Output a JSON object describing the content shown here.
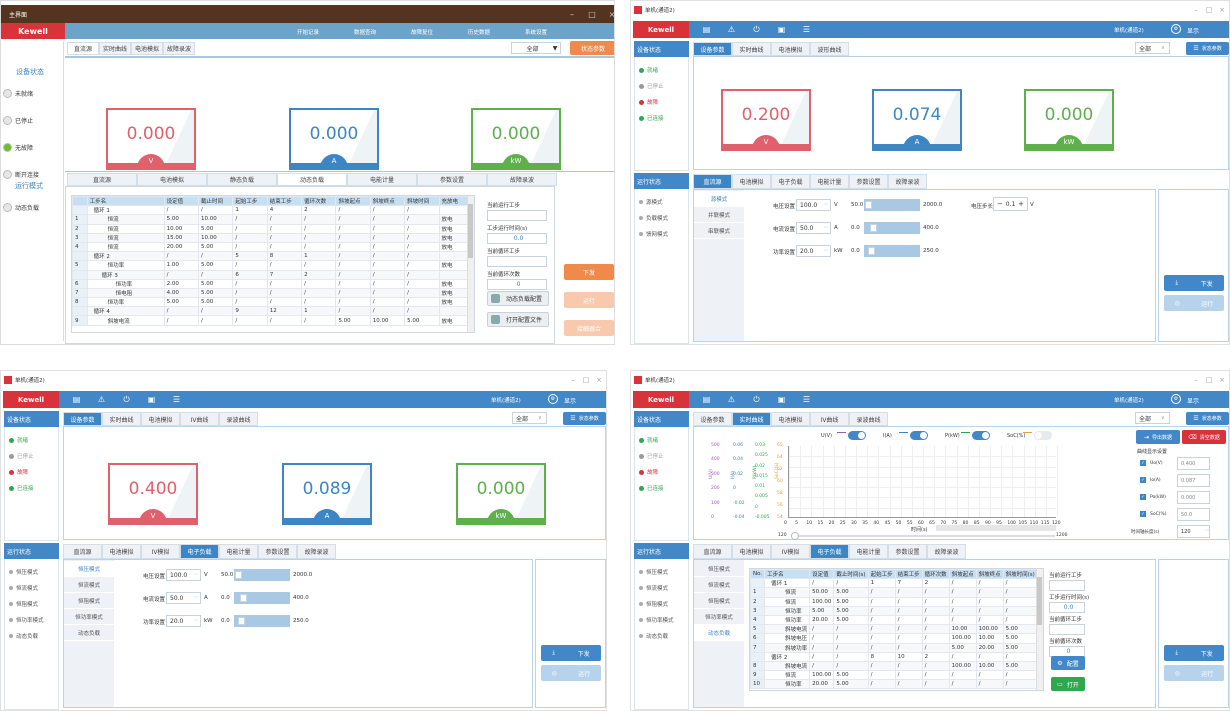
{
  "colors": {
    "v": "#e0606c",
    "a": "#3d86c6",
    "kw": "#5db04a",
    "brand": "#d8323a",
    "header": "#4288c8",
    "old_header": "#6ca3c8",
    "old_title": "#55341f",
    "orange": "#f08a4b"
  },
  "p1": {
    "title": "主界面",
    "brand": "Kewell",
    "nav": [
      "开始记录",
      "数据查询",
      "故障复位",
      "历史数据",
      "系统设置"
    ],
    "tabs": [
      "直流源",
      "实时曲线",
      "电池模拟",
      "故障录波"
    ],
    "select": "全部",
    "status_button": "状态参数",
    "device_heading": "设备状态",
    "status": [
      {
        "label": "未就绪",
        "on": false
      },
      {
        "label": "已停止",
        "on": false
      },
      {
        "label": "无故障",
        "on": true
      },
      {
        "label": "断开连接",
        "on": false
      }
    ],
    "run_heading": "运行模式",
    "run_items": [
      "动态负载"
    ],
    "meters": [
      {
        "value": "0.000",
        "unit": "V"
      },
      {
        "value": "0.000",
        "unit": "A"
      },
      {
        "value": "0.000",
        "unit": "kW"
      }
    ],
    "bottom_tabs": [
      "直流源",
      "电池模拟",
      "静态负载",
      "动态负载",
      "电能计量",
      "参数设置",
      "故障录波"
    ],
    "bottom_active": 3,
    "columns": [
      "",
      "工步名",
      "设定值",
      "截止时间",
      "起始工步",
      "结束工步",
      "循环次数",
      "斜坡起点",
      "斜坡终点",
      "斜坡时间",
      "充放电"
    ],
    "rows": [
      {
        "lv": 0,
        "c": [
          "",
          "循环 1",
          "/",
          "/",
          "1",
          "4",
          "2",
          "/",
          "/",
          "/",
          ""
        ]
      },
      {
        "lv": 1,
        "c": [
          "1",
          "恒流",
          "5.00",
          "10.00",
          "/",
          "/",
          "/",
          "/",
          "/",
          "/",
          "放电"
        ]
      },
      {
        "lv": 1,
        "c": [
          "2",
          "恒流",
          "10.00",
          "5.00",
          "/",
          "/",
          "/",
          "/",
          "/",
          "/",
          "放电"
        ]
      },
      {
        "lv": 1,
        "c": [
          "3",
          "恒流",
          "15.00",
          "10.00",
          "/",
          "/",
          "/",
          "/",
          "/",
          "/",
          "放电"
        ]
      },
      {
        "lv": 1,
        "c": [
          "4",
          "恒流",
          "20.00",
          "5.00",
          "/",
          "/",
          "/",
          "/",
          "/",
          "/",
          "放电"
        ]
      },
      {
        "lv": 0,
        "c": [
          "",
          "循环 2",
          "/",
          "/",
          "5",
          "8",
          "1",
          "/",
          "/",
          "/",
          ""
        ]
      },
      {
        "lv": 1,
        "c": [
          "5",
          "恒功率",
          "1.00",
          "5.00",
          "/",
          "/",
          "/",
          "/",
          "/",
          "/",
          "放电"
        ]
      },
      {
        "lv": 1,
        "c": [
          "",
          "循环 3",
          "/",
          "/",
          "6",
          "7",
          "2",
          "/",
          "/",
          "/",
          ""
        ]
      },
      {
        "lv": 2,
        "c": [
          "6",
          "恒功率",
          "2.00",
          "5.00",
          "/",
          "/",
          "/",
          "/",
          "/",
          "/",
          "放电"
        ]
      },
      {
        "lv": 2,
        "c": [
          "7",
          "恒电阻",
          "4.00",
          "5.00",
          "/",
          "/",
          "/",
          "/",
          "/",
          "/",
          "放电"
        ]
      },
      {
        "lv": 1,
        "c": [
          "8",
          "恒功率",
          "5.00",
          "5.00",
          "/",
          "/",
          "/",
          "/",
          "/",
          "/",
          "放电"
        ]
      },
      {
        "lv": 0,
        "c": [
          "",
          "循环 4",
          "/",
          "/",
          "9",
          "12",
          "1",
          "/",
          "/",
          "/",
          ""
        ]
      },
      {
        "lv": 1,
        "c": [
          "9",
          "斜坡电流",
          "/",
          "/",
          "/",
          "/",
          "/",
          "5.00",
          "10.00",
          "5.00",
          "放电"
        ]
      }
    ],
    "side_fields": [
      {
        "label": "当前运行工步",
        "value": ""
      },
      {
        "label": "工步运行时间(s)",
        "value": "0.0"
      },
      {
        "label": "当前循环工步",
        "value": ""
      },
      {
        "label": "当前循环次数",
        "value": "0"
      }
    ],
    "config_button": "动态负载配置",
    "open_button": "打开配置文件",
    "actions": [
      "下发",
      "运行",
      "接触器合"
    ]
  },
  "p2": {
    "title": "单机(通道2)",
    "brand": "Kewell",
    "channel": "单机(通道2)",
    "display": "显示",
    "toolbar_icons": [
      "document-icon",
      "warning-icon",
      "power-icon",
      "save-icon",
      "list-icon"
    ],
    "device_heading": "设备状态",
    "status": [
      {
        "label": "就绪",
        "color": "#2ea84e"
      },
      {
        "label": "已停止",
        "color": "#9a9a9a"
      },
      {
        "label": "故障",
        "color": "#d8323a"
      },
      {
        "label": "已连接",
        "color": "#2ea84e"
      }
    ],
    "tabs": [
      "设备参数",
      "实时曲线",
      "电池模拟",
      "波形曲线"
    ],
    "tab_active": 0,
    "select": "全部",
    "status_button": "状态参数",
    "meters": [
      {
        "value": "0.200",
        "unit": "V"
      },
      {
        "value": "0.074",
        "unit": "A"
      },
      {
        "value": "0.000",
        "unit": "kW"
      }
    ],
    "run_heading": "运行状态",
    "run_items": [
      "源模式",
      "负载模式",
      "馈网模式"
    ],
    "bottom_tabs": [
      "直流源",
      "电池模拟",
      "电子负载",
      "电能计量",
      "参数设置",
      "故障录波"
    ],
    "bottom_active": 0,
    "subnav": [
      "源模式",
      "并联模式",
      "串联模式"
    ],
    "sub_active": 0,
    "form": [
      {
        "label": "电压设置",
        "value": "100.0",
        "unit": "V",
        "min": "50.0",
        "max": "2000.0",
        "level": 0.03
      },
      {
        "label": "电流设置",
        "value": "50.0",
        "unit": "A",
        "min": "0.0",
        "max": "400.0",
        "level": 0.125
      },
      {
        "label": "功率设置",
        "value": "20.0",
        "unit": "kW",
        "min": "0.0",
        "max": "250.0",
        "level": 0.08
      }
    ],
    "step": {
      "label": "电压步长",
      "value": "0.1",
      "unit": "V"
    },
    "actions": [
      "下发",
      "运行"
    ]
  },
  "p3": {
    "title": "单机(通道2)",
    "brand": "Kewell",
    "channel": "单机(通道2)",
    "display": "显示",
    "toolbar_icons": [
      "document-icon",
      "warning-icon",
      "power-icon",
      "save-icon",
      "list-icon"
    ],
    "device_heading": "设备状态",
    "status": [
      {
        "label": "就绪",
        "color": "#2ea84e"
      },
      {
        "label": "已停止",
        "color": "#9a9a9a"
      },
      {
        "label": "故障",
        "color": "#d8323a"
      },
      {
        "label": "已连接",
        "color": "#2ea84e"
      }
    ],
    "tabs": [
      "设备参数",
      "实时曲线",
      "电池模拟",
      "IV曲线",
      "录波曲线"
    ],
    "tab_active": 0,
    "select": "全部",
    "status_button": "状态参数",
    "meters": [
      {
        "value": "0.400",
        "unit": "V"
      },
      {
        "value": "0.089",
        "unit": "A"
      },
      {
        "value": "0.000",
        "unit": "kW"
      }
    ],
    "run_heading": "运行状态",
    "run_items": [
      "恒压模式",
      "恒流模式",
      "恒阻模式",
      "恒功率模式",
      "动态负载"
    ],
    "bottom_tabs": [
      "直流源",
      "电池模拟",
      "IV模拟",
      "电子负载",
      "电能计量",
      "参数设置",
      "故障录波"
    ],
    "bottom_active": 3,
    "subnav": [
      "恒压模式",
      "恒流模式",
      "恒阻模式",
      "恒功率模式",
      "动态负载"
    ],
    "sub_active": 0,
    "form": [
      {
        "label": "电压设置",
        "value": "100.0",
        "unit": "V",
        "min": "50.0",
        "max": "2000.0",
        "level": 0.03
      },
      {
        "label": "电流设置",
        "value": "50.0",
        "unit": "A",
        "min": "0.0",
        "max": "400.0",
        "level": 0.125
      },
      {
        "label": "功率设置",
        "value": "20.0",
        "unit": "kW",
        "min": "0.0",
        "max": "250.0",
        "level": 0.08
      }
    ],
    "actions": [
      "下发",
      "运行"
    ]
  },
  "p4": {
    "title": "单机(通道2)",
    "brand": "Kewell",
    "channel": "单机(通道2)",
    "display": "显示",
    "toolbar_icons": [
      "document-icon",
      "warning-icon",
      "power-icon",
      "save-icon",
      "list-icon"
    ],
    "device_heading": "设备状态",
    "status": [
      {
        "label": "就绪",
        "color": "#2ea84e"
      },
      {
        "label": "已停止",
        "color": "#9a9a9a"
      },
      {
        "label": "故障",
        "color": "#d8323a"
      },
      {
        "label": "已连接",
        "color": "#2ea84e"
      }
    ],
    "tabs": [
      "设备参数",
      "实时曲线",
      "电池模拟",
      "IV曲线",
      "录波曲线"
    ],
    "tab_active": 1,
    "select": "全部",
    "status_button": "状态参数",
    "chart": {
      "toggles": [
        {
          "label": "U(V)",
          "color": "#9b59b6",
          "on": true
        },
        {
          "label": "I(A)",
          "color": "#3d86c6",
          "on": true
        },
        {
          "label": "P(kW)",
          "color": "#2ea84e",
          "on": true
        },
        {
          "label": "SoC(%)",
          "color": "#e6a23c",
          "on": false
        }
      ],
      "axes": [
        {
          "label": "U(V)",
          "color": "#9b59b6",
          "ticks": [
            "500",
            "400",
            "300",
            "200",
            "100",
            "0"
          ]
        },
        {
          "label": "I(A)",
          "color": "#3d86c6",
          "ticks": [
            "0.06",
            "0.04",
            "0.02",
            "0",
            "-0.02",
            "-0.04"
          ]
        },
        {
          "label": "P(kW)",
          "color": "#2ea84e",
          "ticks": [
            "0.03",
            "0.025",
            "0.02",
            "0.015",
            "0.01",
            "0.005",
            "0",
            "-0.005"
          ]
        },
        {
          "label": "SoC(%)",
          "color": "#e6a23c",
          "ticks": [
            "65",
            "64",
            "62",
            "60",
            "58",
            "56",
            "54"
          ]
        }
      ],
      "x_ticks": [
        "0",
        "5",
        "10",
        "15",
        "20",
        "25",
        "30",
        "35",
        "40",
        "45",
        "50",
        "55",
        "60",
        "65",
        "70",
        "75",
        "80",
        "85",
        "90",
        "95",
        "100",
        "105",
        "110",
        "115",
        "120"
      ],
      "xlabel": "时间(s)",
      "slider_min": "120",
      "slider_max": "1200",
      "export_button": "导出数据",
      "clear_button": "清空数据",
      "settings_heading": "曲线显示设置",
      "readouts": [
        {
          "label": "Uo(V)",
          "value": "0.400"
        },
        {
          "label": "Io(A)",
          "value": "0.087"
        },
        {
          "label": "Po(kW)",
          "value": "0.000"
        },
        {
          "label": "SoC(%)",
          "value": "50.0"
        }
      ],
      "axis_len_label": "时间轴长度(s)",
      "axis_len": "120"
    },
    "run_heading": "运行状态",
    "run_items": [
      "恒压模式",
      "恒流模式",
      "恒阻模式",
      "恒功率模式",
      "动态负载"
    ],
    "bottom_tabs": [
      "直流源",
      "电池模拟",
      "IV模拟",
      "电子负载",
      "电能计量",
      "参数设置",
      "故障录波"
    ],
    "bottom_active": 3,
    "subnav": [
      "恒压模式",
      "恒流模式",
      "恒阻模式",
      "恒功率模式",
      "动态负载"
    ],
    "sub_active": 4,
    "columns": [
      "No.",
      "工步名",
      "设定值",
      "截止时间(s)",
      "起始工步",
      "结束工步",
      "循环次数",
      "斜坡起点",
      "斜坡终点",
      "斜坡时间(s)",
      "充放电"
    ],
    "rows": [
      {
        "lv": 0,
        "c": [
          "",
          "循环 1",
          "/",
          "/",
          "1",
          "7",
          "2",
          "/",
          "/",
          "/",
          ""
        ]
      },
      {
        "lv": 1,
        "c": [
          "1",
          "恒流",
          "50.00",
          "5.00",
          "/",
          "/",
          "/",
          "/",
          "/",
          "/",
          "放电"
        ]
      },
      {
        "lv": 1,
        "c": [
          "2",
          "恒流",
          "100.00",
          "5.00",
          "/",
          "/",
          "/",
          "/",
          "/",
          "/",
          "放电"
        ]
      },
      {
        "lv": 1,
        "c": [
          "3",
          "恒功率",
          "5.00",
          "5.00",
          "/",
          "/",
          "/",
          "/",
          "/",
          "/",
          "放电"
        ]
      },
      {
        "lv": 1,
        "c": [
          "4",
          "恒功率",
          "20.00",
          "5.00",
          "/",
          "/",
          "/",
          "/",
          "/",
          "/",
          "放电"
        ]
      },
      {
        "lv": 1,
        "c": [
          "5",
          "斜坡电流",
          "/",
          "/",
          "/",
          "/",
          "/",
          "10.00",
          "100.00",
          "5.00",
          "放电"
        ]
      },
      {
        "lv": 1,
        "c": [
          "6",
          "斜坡电压",
          "/",
          "/",
          "/",
          "/",
          "/",
          "100.00",
          "10.00",
          "5.00",
          "放电"
        ]
      },
      {
        "lv": 1,
        "c": [
          "7",
          "斜坡功率",
          "/",
          "/",
          "/",
          "/",
          "/",
          "5.00",
          "20.00",
          "5.00",
          "放电"
        ]
      },
      {
        "lv": 0,
        "c": [
          "",
          "循环 2",
          "/",
          "/",
          "8",
          "10",
          "2",
          "/",
          "/",
          "/",
          ""
        ]
      },
      {
        "lv": 1,
        "c": [
          "8",
          "斜坡电流",
          "/",
          "/",
          "/",
          "/",
          "/",
          "100.00",
          "10.00",
          "5.00",
          "放电"
        ]
      },
      {
        "lv": 1,
        "c": [
          "9",
          "恒流",
          "100.00",
          "5.00",
          "/",
          "/",
          "/",
          "/",
          "/",
          "/",
          "放电"
        ]
      },
      {
        "lv": 1,
        "c": [
          "10",
          "恒功率",
          "20.00",
          "5.00",
          "/",
          "/",
          "/",
          "/",
          "/",
          "/",
          "放电"
        ]
      }
    ],
    "side_fields": [
      {
        "label": "当前运行工步",
        "value": ""
      },
      {
        "label": "工步运行时间(s)",
        "value": "0.0"
      },
      {
        "label": "当前循环工步",
        "value": ""
      },
      {
        "label": "当前循环次数",
        "value": "0"
      }
    ],
    "config_button": "配置",
    "open_button": "打开",
    "actions": [
      "下发",
      "运行"
    ]
  }
}
